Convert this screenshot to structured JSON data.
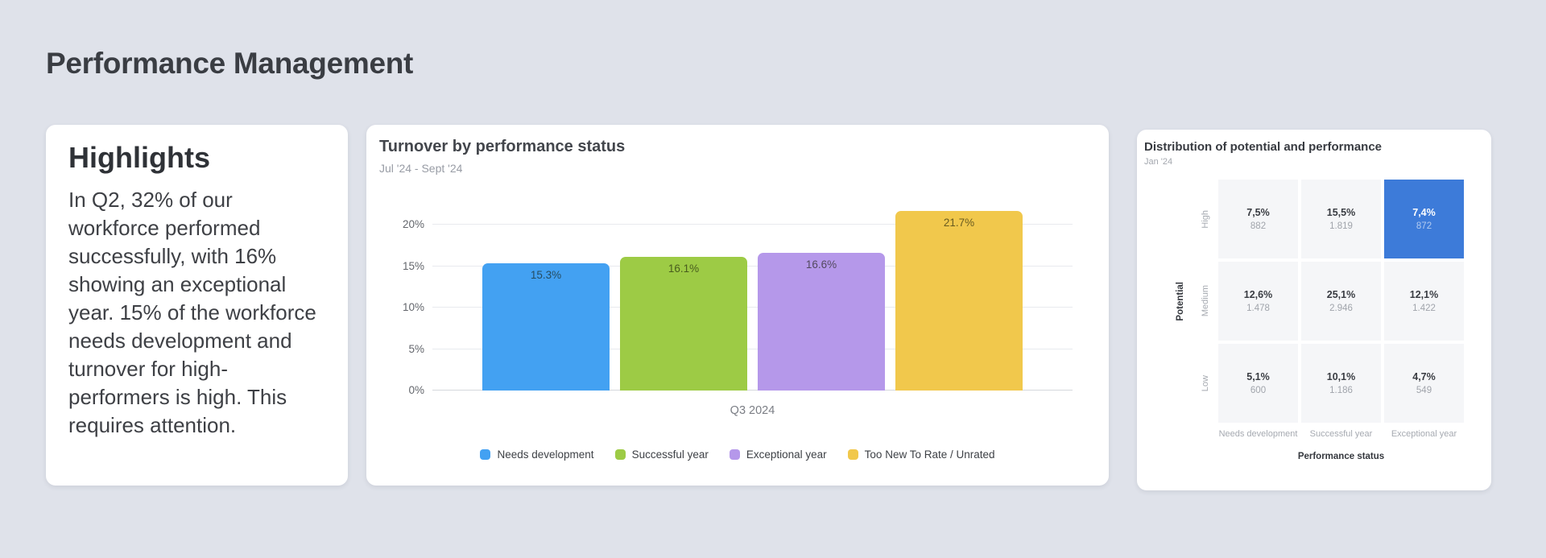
{
  "page": {
    "title": "Performance Management",
    "background_color": "#DFE2EA"
  },
  "highlights": {
    "title": "Highlights",
    "body": "In Q2, 32% of our workforce performed successfully, with 16% showing an exceptional year. 15% of the workforce needs development and turnover for  high-performers is high. This requires attention."
  },
  "turnover_chart": {
    "title": "Turnover by performance status",
    "subtitle": "Jul '24 - Sept '24",
    "x_label": "Q3 2024",
    "y_ticks": [
      "0%",
      "5%",
      "10%",
      "15%",
      "20%"
    ],
    "y_max_percent": 20,
    "bars": [
      {
        "name": "Needs development",
        "label": "15.3%",
        "value": 15.3,
        "color": "#43A1F2"
      },
      {
        "name": "Successful year",
        "label": "16.1%",
        "value": 16.1,
        "color": "#9DCB45"
      },
      {
        "name": "Exceptional year",
        "label": "16.6%",
        "value": 16.6,
        "color": "#B598EA"
      },
      {
        "name": "Too New To Rate / Unrated",
        "label": "21.7%",
        "value": 21.7,
        "color": "#F1C84C"
      }
    ],
    "legend": [
      {
        "label": "Needs development",
        "color": "#43A1F2"
      },
      {
        "label": "Successful year",
        "color": "#9DCB45"
      },
      {
        "label": "Exceptional year",
        "color": "#B598EA"
      },
      {
        "label": "Too New To Rate / Unrated",
        "color": "#F1C84C"
      }
    ]
  },
  "matrix_card": {
    "title": "Distribution of potential and performance",
    "subtitle": "Jan '24",
    "y_axis_title": "Potential",
    "x_axis_title": "Performance status",
    "row_labels": [
      "High",
      "Medium",
      "Low"
    ],
    "col_labels": [
      "Needs development",
      "Successful year",
      "Exceptional year"
    ],
    "cell_color": "#F5F6F8",
    "highlight_color": "#3D7BD9",
    "rows": [
      [
        {
          "percent": "7,5%",
          "count": "882",
          "highlight": false
        },
        {
          "percent": "15,5%",
          "count": "1.819",
          "highlight": false
        },
        {
          "percent": "7,4%",
          "count": "872",
          "highlight": true
        }
      ],
      [
        {
          "percent": "12,6%",
          "count": "1.478",
          "highlight": false
        },
        {
          "percent": "25,1%",
          "count": "2.946",
          "highlight": false
        },
        {
          "percent": "12,1%",
          "count": "1.422",
          "highlight": false
        }
      ],
      [
        {
          "percent": "5,1%",
          "count": "600",
          "highlight": false
        },
        {
          "percent": "10,1%",
          "count": "1.186",
          "highlight": false
        },
        {
          "percent": "4,7%",
          "count": "549",
          "highlight": false
        }
      ]
    ]
  },
  "chart_data": [
    {
      "type": "bar",
      "title": "Turnover by performance status",
      "subtitle": "Jul '24 - Sept '24",
      "categories": [
        "Needs development",
        "Successful year",
        "Exceptional year",
        "Too New To Rate / Unrated"
      ],
      "values": [
        15.3,
        16.1,
        16.6,
        21.7
      ],
      "x_group": "Q3 2024",
      "unit": "%",
      "ylim": [
        0,
        20
      ],
      "yticks": [
        0,
        5,
        10,
        15,
        20
      ],
      "grid": true,
      "legend_position": "bottom"
    },
    {
      "type": "heatmap",
      "title": "Distribution of potential and performance",
      "subtitle": "Jan '24",
      "xlabel": "Performance status",
      "ylabel": "Potential",
      "x_categories": [
        "Needs development",
        "Successful year",
        "Exceptional year"
      ],
      "y_categories": [
        "High",
        "Medium",
        "Low"
      ],
      "percent_values": [
        [
          7.5,
          15.5,
          7.4
        ],
        [
          12.6,
          25.1,
          12.1
        ],
        [
          5.1,
          10.1,
          4.7
        ]
      ],
      "counts": [
        [
          882,
          1819,
          872
        ],
        [
          1478,
          2946,
          1422
        ],
        [
          600,
          1186,
          549
        ]
      ],
      "highlighted_cell": {
        "row": "High",
        "col": "Exceptional year"
      }
    }
  ]
}
